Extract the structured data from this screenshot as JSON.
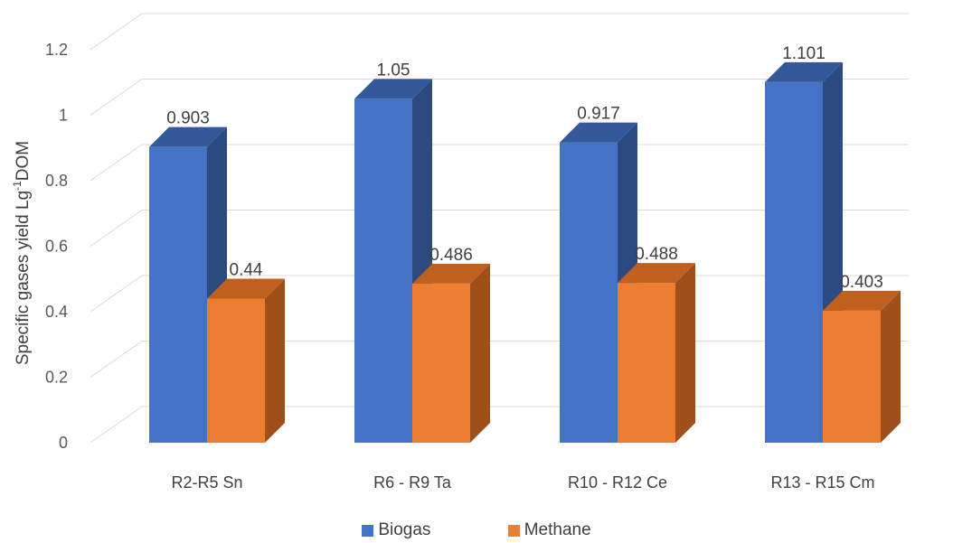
{
  "chart_data": {
    "type": "bar",
    "title": "",
    "xlabel": "",
    "ylabel": "Specific gases yield Lg",
    "ylabel_sup": "-1",
    "ylabel_suffix": "DOM",
    "categories": [
      "R2-R5 Sn",
      "R6 - R9 Ta",
      "R10 - R12 Ce",
      "R13 - R15 Cm"
    ],
    "series": [
      {
        "name": "Biogas",
        "values": [
          0.903,
          1.05,
          0.917,
          1.101
        ],
        "labels": [
          "0.903",
          "1.05",
          "0.917",
          "1.101"
        ],
        "color": "#4472C4",
        "side_color": "#2C4A80",
        "top_color": "#34599A"
      },
      {
        "name": "Methane",
        "values": [
          0.44,
          0.486,
          0.488,
          0.403
        ],
        "labels": [
          "0.44",
          "0.486",
          "0.488",
          "0.403"
        ],
        "color": "#ED7D31",
        "side_color": "#9E4F1A",
        "top_color": "#C0601F"
      }
    ],
    "ylim": [
      0,
      1.2
    ],
    "yticks": [
      0,
      0.2,
      0.4,
      0.6,
      0.8,
      1,
      1.2
    ],
    "ytick_labels": [
      "0",
      "0.2",
      "0.4",
      "0.6",
      "0.8",
      "1",
      "1.2"
    ],
    "grid": true,
    "legend_position": "bottom",
    "style": "3d-column"
  }
}
